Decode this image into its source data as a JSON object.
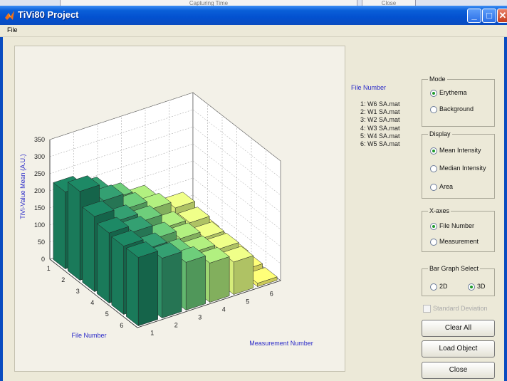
{
  "background_window": {
    "title_text": "Capturing Time",
    "close_label": "Close"
  },
  "window": {
    "title": "TiVi80 Project",
    "icon": "matlab-logo-icon"
  },
  "menu": {
    "file": "File"
  },
  "file_list": {
    "title": "File Number",
    "items": [
      "1: W6  SA.mat",
      "2: W1  SA.mat",
      "3: W2  SA.mat",
      "4: W3  SA.mat",
      "5: W4  SA.mat",
      "6: W5  SA.mat"
    ]
  },
  "mode": {
    "label": "Mode",
    "options": [
      "Erythema",
      "Background"
    ],
    "selected": "Erythema"
  },
  "display": {
    "label": "Display",
    "options": [
      "Mean Intensity",
      "Median Intensity",
      "Area"
    ],
    "selected": "Mean Intensity"
  },
  "xaxes": {
    "label": "X-axes",
    "options": [
      "File Number",
      "Measurement"
    ],
    "selected": "File Number"
  },
  "bar_graph": {
    "label": "Bar Graph Select",
    "options": [
      "2D",
      "3D"
    ],
    "selected": "3D"
  },
  "std_dev": {
    "label": "Standard Deviation",
    "checked": false,
    "enabled": false
  },
  "buttons": {
    "clear_all": "Clear All",
    "load_object": "Load Object",
    "close": "Close"
  },
  "chart_data": {
    "type": "bar3d",
    "zlabel": "TiVi-Value Mean (A.U.)",
    "xlabel": "File Number",
    "ylabel": "Measurement Number",
    "file_ticks": [
      "1",
      "2",
      "3",
      "4",
      "5",
      "6"
    ],
    "measurement_ticks": [
      "1",
      "2",
      "3",
      "4",
      "5",
      "6"
    ],
    "z_ticks": [
      "0",
      "50",
      "100",
      "150",
      "200",
      "250",
      "300",
      "350"
    ],
    "zlim": [
      0,
      350
    ],
    "grid": true,
    "colormap": [
      "#1a7a5a",
      "#2e8f66",
      "#62b86e",
      "#9fd672",
      "#d6ec7a",
      "#f8f56c"
    ],
    "values": [
      [
        225,
        200,
        160,
        130,
        0,
        20
      ],
      [
        260,
        210,
        165,
        140,
        120,
        25
      ],
      [
        220,
        185,
        160,
        120,
        110,
        20
      ],
      [
        205,
        185,
        145,
        120,
        100,
        20
      ],
      [
        200,
        170,
        130,
        115,
        100,
        15
      ],
      [
        200,
        175,
        140,
        115,
        95,
        10
      ]
    ]
  }
}
